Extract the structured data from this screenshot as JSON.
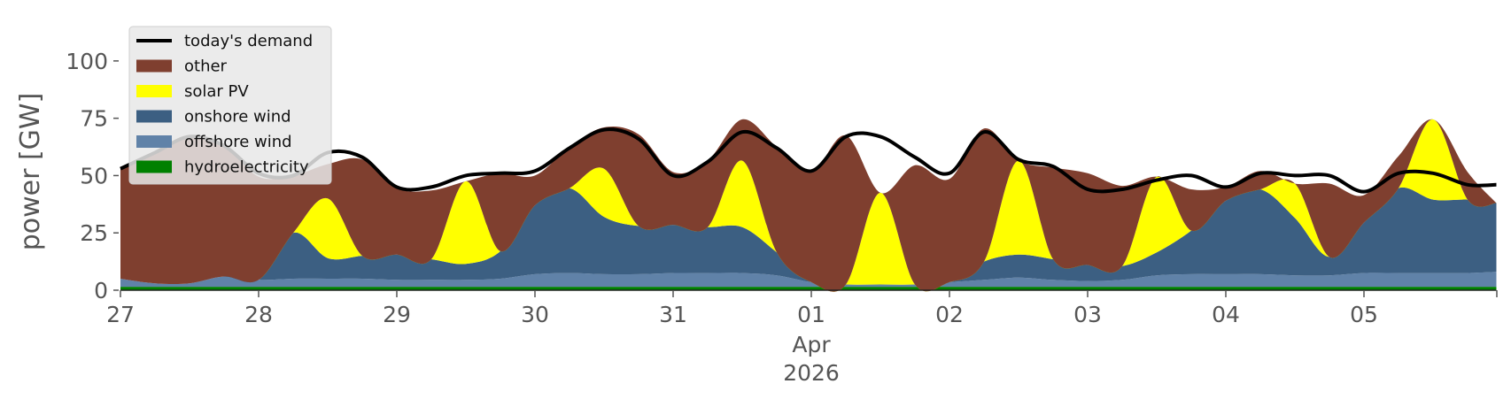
{
  "chart_data": {
    "type": "area",
    "ylabel": "power [GW]",
    "xlabel": "",
    "ylim": [
      0,
      115
    ],
    "xlim": [
      "2026-03-27T00:00",
      "2026-04-05T23:00"
    ],
    "yticks": [
      0,
      25,
      50,
      75,
      100
    ],
    "x_ticks": [
      {
        "date": "2026-03-27",
        "label": "27"
      },
      {
        "date": "2026-03-28",
        "label": "28"
      },
      {
        "date": "2026-03-29",
        "label": "29"
      },
      {
        "date": "2026-03-30",
        "label": "30"
      },
      {
        "date": "2026-03-31",
        "label": "31"
      },
      {
        "date": "2026-04-01",
        "label": "01",
        "sublabels": [
          "Apr",
          "2026"
        ]
      },
      {
        "date": "2026-04-02",
        "label": "02"
      },
      {
        "date": "2026-04-03",
        "label": "03"
      },
      {
        "date": "2026-04-04",
        "label": "04"
      },
      {
        "date": "2026-04-05",
        "label": "05"
      }
    ],
    "grid": false,
    "legend_position": "top-left",
    "x": [
      "2026-03-27T00:00",
      "2026-03-27T06:00",
      "2026-03-27T12:00",
      "2026-03-27T18:00",
      "2026-03-28T00:00",
      "2026-03-28T06:00",
      "2026-03-28T12:00",
      "2026-03-28T18:00",
      "2026-03-29T00:00",
      "2026-03-29T06:00",
      "2026-03-29T12:00",
      "2026-03-29T18:00",
      "2026-03-30T00:00",
      "2026-03-30T06:00",
      "2026-03-30T12:00",
      "2026-03-30T18:00",
      "2026-03-31T00:00",
      "2026-03-31T06:00",
      "2026-03-31T12:00",
      "2026-03-31T18:00",
      "2026-04-01T00:00",
      "2026-04-01T06:00",
      "2026-04-01T12:00",
      "2026-04-01T18:00",
      "2026-04-02T00:00",
      "2026-04-02T06:00",
      "2026-04-02T12:00",
      "2026-04-02T18:00",
      "2026-04-03T00:00",
      "2026-04-03T06:00",
      "2026-04-03T12:00",
      "2026-04-03T18:00",
      "2026-04-04T00:00",
      "2026-04-04T06:00",
      "2026-04-04T12:00",
      "2026-04-04T18:00",
      "2026-04-05T00:00",
      "2026-04-05T06:00",
      "2026-04-05T12:00",
      "2026-04-05T18:00",
      "2026-04-05T23:00"
    ],
    "series": [
      {
        "name": "hydroelectricity",
        "color": "#008000",
        "kind": "area",
        "values": [
          1.5,
          1.5,
          1.5,
          1.5,
          1.5,
          1.5,
          1.5,
          1.5,
          1.5,
          1.5,
          1.5,
          1.5,
          1.5,
          1.5,
          1.5,
          1.5,
          1.5,
          1.5,
          1.5,
          1.5,
          1.5,
          1.5,
          1.5,
          1.5,
          1.5,
          1.5,
          1.5,
          1.5,
          1.5,
          1.5,
          1.5,
          1.5,
          1.5,
          1.5,
          1.5,
          1.5,
          1.5,
          1.5,
          1.5,
          1.5,
          1.5
        ]
      },
      {
        "name": "offshore wind",
        "color": "#6082a8",
        "kind": "area",
        "values": [
          3.5,
          1.5,
          1.5,
          4.5,
          3,
          3.5,
          3.5,
          3.5,
          3,
          3,
          3,
          3.5,
          5.5,
          6,
          5.5,
          5.5,
          6,
          6,
          6,
          5,
          2,
          1,
          1,
          1,
          2,
          3,
          4,
          3,
          2.5,
          3,
          5,
          5.5,
          5.5,
          5.5,
          5,
          5,
          6,
          6,
          6,
          6,
          6.5
        ]
      },
      {
        "name": "onshore wind",
        "color": "#3c5f82",
        "kind": "area",
        "values": [
          0,
          0,
          0,
          0,
          0,
          20,
          9,
          10,
          11,
          9,
          7,
          12,
          30,
          37,
          25,
          21,
          21,
          20,
          20,
          10,
          0,
          0,
          0,
          0,
          0,
          8,
          10,
          9,
          7,
          6,
          10,
          19,
          32,
          37,
          25,
          8,
          22,
          37,
          32,
          32,
          30
        ]
      },
      {
        "name": "solar PV",
        "color": "#ffff00",
        "kind": "area",
        "values": [
          0,
          0,
          0,
          0,
          0,
          0,
          26,
          0,
          0,
          0,
          36,
          0,
          0,
          0,
          21,
          0,
          0,
          0,
          29,
          0,
          0,
          0,
          40,
          0,
          0,
          0,
          41,
          0,
          0,
          0,
          33,
          0,
          0,
          0,
          15,
          0,
          0,
          0,
          35,
          0,
          0
        ]
      },
      {
        "name": "other",
        "color": "#7f3f2f",
        "kind": "area",
        "values": [
          48,
          57,
          64,
          57,
          45,
          25,
          15,
          42,
          29,
          30,
          0,
          34,
          13,
          18,
          18,
          40,
          23,
          29,
          18,
          46,
          48,
          65,
          0,
          52,
          45,
          58,
          0,
          40,
          40,
          35,
          0,
          18,
          6,
          8,
          0,
          32,
          12,
          14,
          0,
          12,
          0
        ]
      },
      {
        "name": "today's demand",
        "color": "#000000",
        "kind": "line",
        "values": [
          53,
          60,
          67,
          63,
          51,
          50,
          60,
          58,
          45,
          45,
          50,
          51,
          52,
          62,
          70,
          66,
          50,
          56,
          69,
          62,
          52,
          67,
          67,
          58,
          51,
          69,
          57,
          54,
          44,
          44,
          48,
          50,
          45,
          51,
          50,
          50,
          43,
          51,
          51,
          46,
          46
        ]
      }
    ]
  }
}
